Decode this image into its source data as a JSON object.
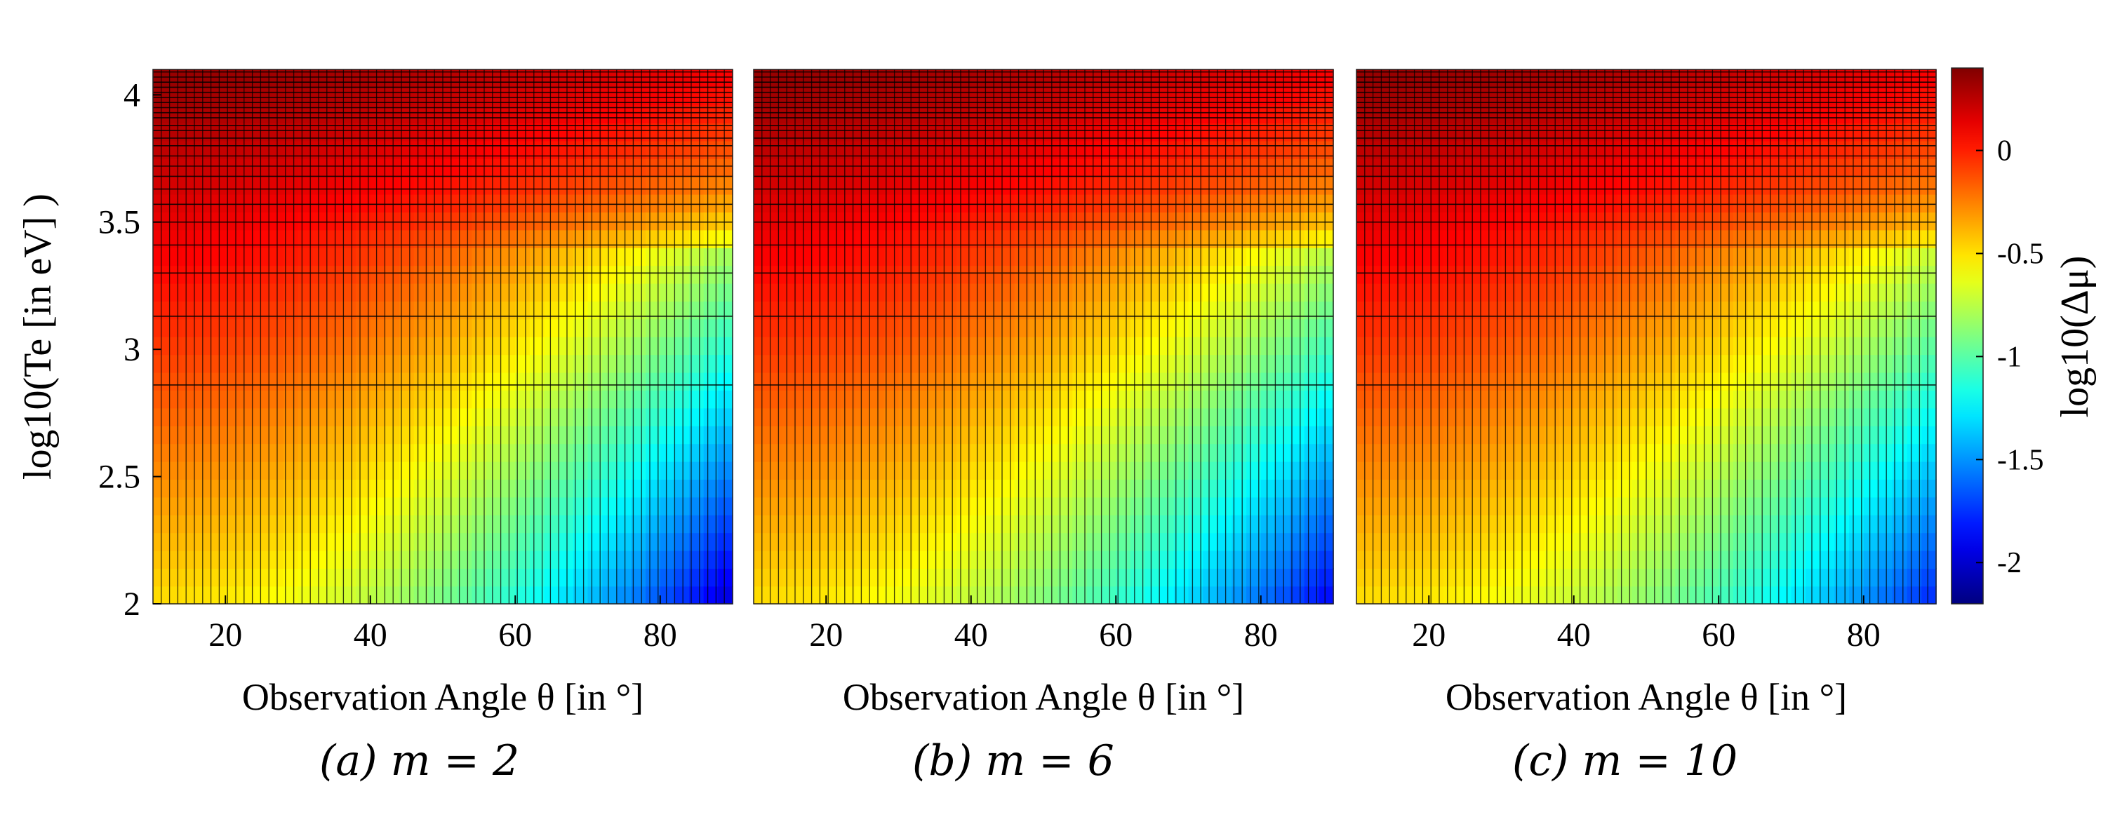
{
  "chart_data": [
    {
      "type": "heatmap",
      "panel_label": "(a)  m = 2",
      "xlabel": "Observation Angle θ [in °]",
      "ylabel": "log10(Te [in eV] )",
      "x_ticks": [
        20,
        40,
        60,
        80
      ],
      "y_ticks": [
        2,
        2.5,
        3,
        3.5,
        4
      ],
      "xlim": [
        10,
        90
      ],
      "ylim": [
        2,
        4.1
      ],
      "m": 2,
      "value_samples": [
        {
          "x": 10,
          "y": 4.1,
          "z": 0.35
        },
        {
          "x": 90,
          "y": 4.1,
          "z": 0.1
        },
        {
          "x": 10,
          "y": 3.4,
          "z": 0.1
        },
        {
          "x": 10,
          "y": 2.0,
          "z": -0.5
        },
        {
          "x": 90,
          "y": 3.4,
          "z": -0.8
        },
        {
          "x": 90,
          "y": 2.0,
          "z": -2.0
        }
      ]
    },
    {
      "type": "heatmap",
      "panel_label": "(b)  m = 6",
      "xlabel": "Observation Angle θ [in °]",
      "x_ticks": [
        20,
        40,
        60,
        80
      ],
      "xlim": [
        10,
        90
      ],
      "ylim": [
        2,
        4.1
      ],
      "m": 6,
      "value_samples": [
        {
          "x": 10,
          "y": 4.1,
          "z": 0.35
        },
        {
          "x": 90,
          "y": 4.1,
          "z": 0.1
        },
        {
          "x": 10,
          "y": 3.4,
          "z": 0.1
        },
        {
          "x": 10,
          "y": 2.0,
          "z": -0.5
        },
        {
          "x": 90,
          "y": 3.4,
          "z": -0.75
        },
        {
          "x": 90,
          "y": 2.0,
          "z": -1.9
        }
      ]
    },
    {
      "type": "heatmap",
      "panel_label": "(c) m = 10",
      "xlabel": "Observation Angle θ [in °]",
      "x_ticks": [
        20,
        40,
        60,
        80
      ],
      "xlim": [
        10,
        90
      ],
      "ylim": [
        2,
        4.1
      ],
      "m": 10,
      "value_samples": [
        {
          "x": 10,
          "y": 4.1,
          "z": 0.35
        },
        {
          "x": 90,
          "y": 4.1,
          "z": 0.1
        },
        {
          "x": 10,
          "y": 3.4,
          "z": 0.1
        },
        {
          "x": 10,
          "y": 2.0,
          "z": -0.5
        },
        {
          "x": 90,
          "y": 3.4,
          "z": -0.7
        },
        {
          "x": 90,
          "y": 2.0,
          "z": -1.8
        }
      ]
    }
  ],
  "colorbar": {
    "label": "log10(Δμ)",
    "ticks": [
      0,
      -0.5,
      -1,
      -1.5,
      -2
    ],
    "tick_labels": [
      "0",
      "-0.5",
      "-1",
      "-1.5",
      "-2"
    ],
    "range": [
      -2.2,
      0.4
    ],
    "colormap": "jet"
  },
  "grid": {
    "x_lines": 70,
    "y_levels": [
      2.86,
      3.13,
      3.3,
      3.41,
      3.5,
      3.57,
      3.63,
      3.68,
      3.72,
      3.76,
      3.8,
      3.83,
      3.86,
      3.88,
      3.91,
      3.93,
      3.95,
      3.97,
      3.99,
      4.01,
      4.03,
      4.05,
      4.07,
      4.09
    ]
  },
  "colors": {
    "grid_line": "#000000",
    "text": "#000000"
  }
}
